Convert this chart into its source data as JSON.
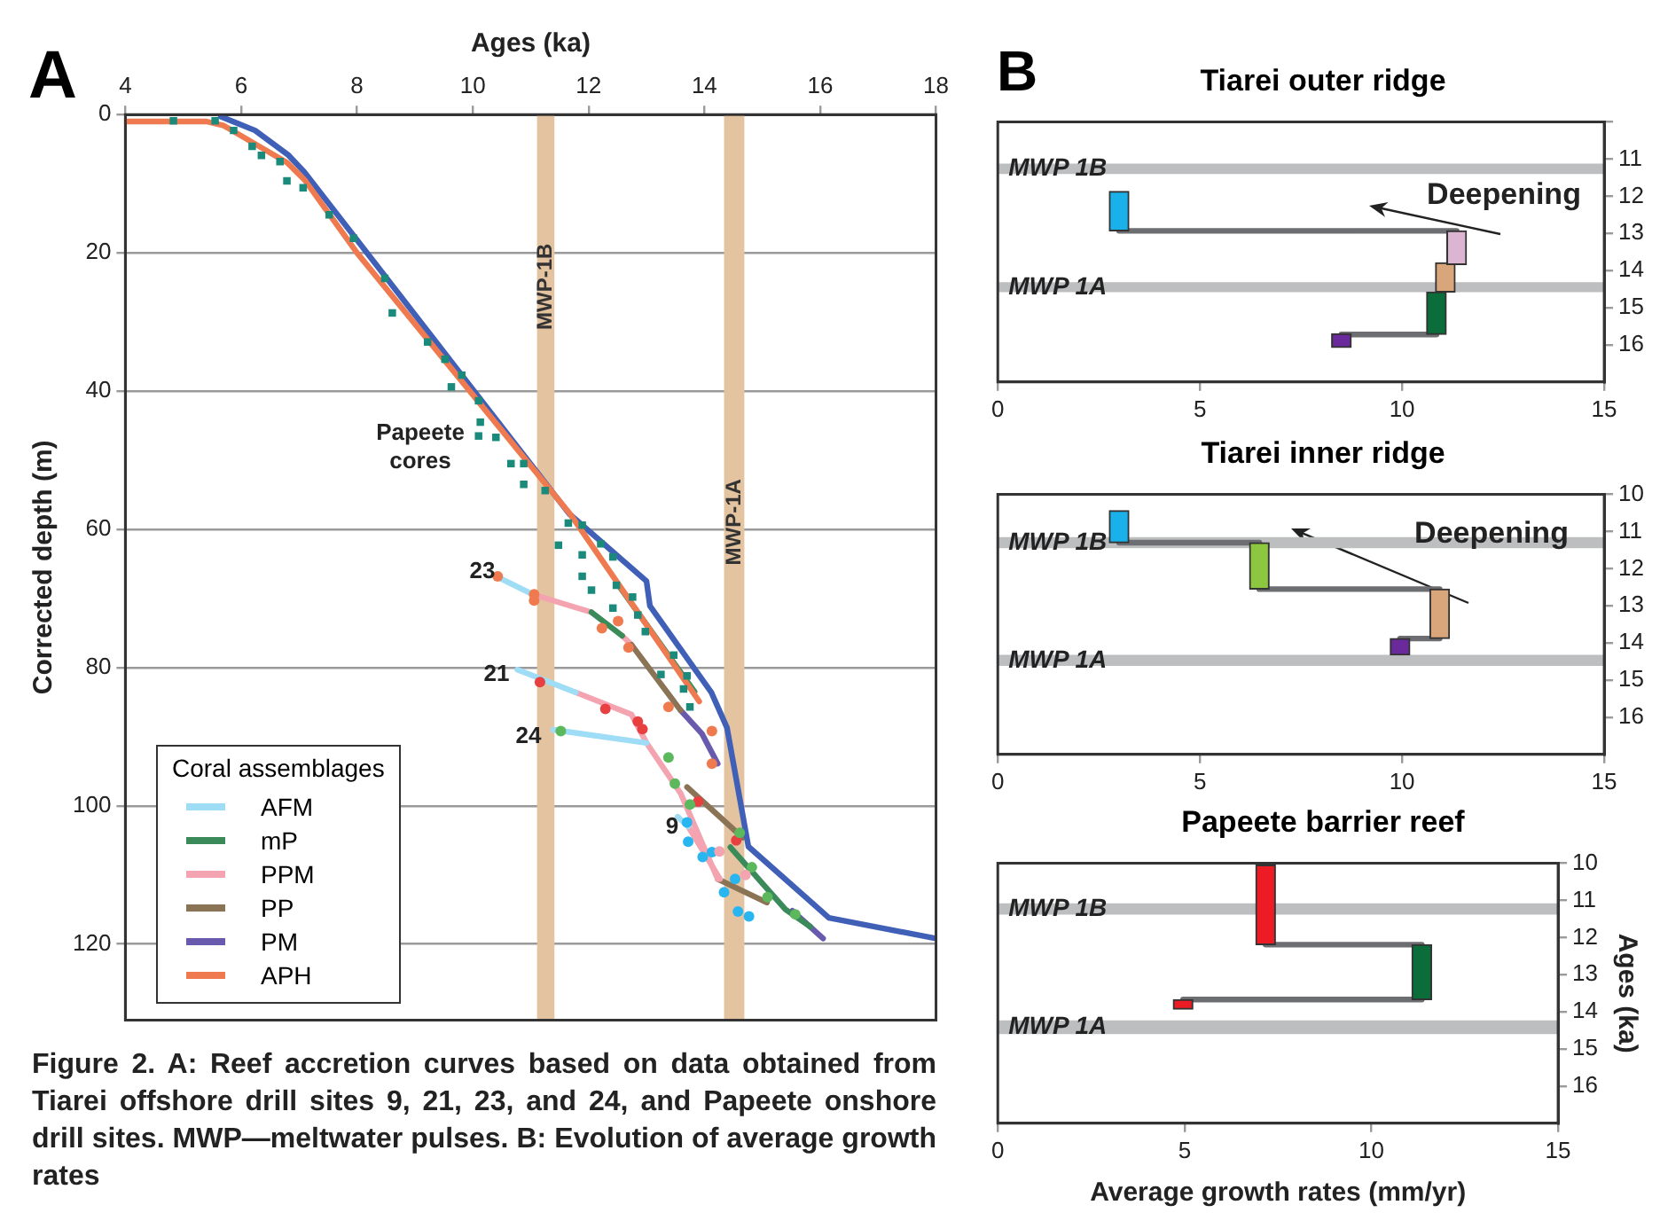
{
  "chart_data": [
    {
      "type": "line",
      "title": "A",
      "xlabel": "Ages (ka)",
      "ylabel": "Corrected depth (m)",
      "legend_title": "Coral assemblages",
      "legend": "bottom left",
      "grid": "y",
      "xlim": [
        4,
        18
      ],
      "xticks": [
        4,
        6,
        8,
        10,
        12,
        14,
        16,
        18
      ],
      "ylim": [
        131,
        0
      ],
      "yticks": [
        0,
        20,
        40,
        60,
        80,
        100,
        120
      ],
      "bands": [
        {
          "axis": "x",
          "from": 11.11,
          "to": 11.41,
          "label": "MWP-1B",
          "color": "#e3c3a0"
        },
        {
          "axis": "x",
          "from": 14.34,
          "to": 14.69,
          "label": "MWP-1A",
          "color": "#e3c3a0"
        }
      ],
      "series": [
        {
          "marker": "none",
          "name": "AFM",
          "color": "#9fdcf5",
          "x": [
            10.4,
            11.03
          ],
          "values": [
            66.8,
            69.4
          ]
        },
        {
          "marker": "none",
          "name": "mP",
          "color": "#3a8a5a",
          "x": [
            12.05,
            12.58
          ],
          "values": [
            72.0,
            75.4
          ]
        },
        {
          "marker": "none",
          "name": "PPM",
          "color": "#f4a3b0",
          "x": [
            11.03,
            12.05
          ],
          "values": [
            69.4,
            72.0
          ]
        },
        {
          "marker": "none",
          "name": "PP",
          "color": "#8b7355",
          "x": [
            12.74,
            13.59
          ],
          "values": [
            76.7,
            86.2
          ]
        },
        {
          "marker": "none",
          "name": "PM",
          "color": "#6a5aad",
          "x": [
            13.59,
            13.96,
            14.23
          ],
          "values": [
            86.2,
            89.6,
            93.9
          ]
        },
        {
          "marker": "none",
          "name": "APH",
          "color": "#f07a50",
          "x": [
            4,
            5.4,
            5.7,
            6.8,
            7.1,
            8,
            11.7,
            12.53,
            13.91
          ],
          "values": [
            1,
            1,
            1.6,
            7,
            9.5,
            20,
            58,
            68.1,
            84.9
          ]
        },
        {
          "marker": "none",
          "color": "#4060b8",
          "x": [
            5.65,
            6.24,
            6.82,
            7.09,
            11.67,
            13.0,
            13.06,
            14.12,
            14.39,
            14.76,
            16.15,
            18.0
          ],
          "values": [
            0.3,
            2.3,
            5.9,
            8.3,
            57.8,
            67.5,
            71.1,
            83.6,
            88.7,
            105.9,
            116.2,
            119.2
          ]
        },
        {
          "marker": "none",
          "color": "#9fdcf5",
          "x": [
            10.77,
            11.78
          ],
          "values": [
            80.3,
            83.6
          ]
        },
        {
          "marker": "none",
          "color": "#9fdcf5",
          "x": [
            11.39,
            13.0
          ],
          "values": [
            89.0,
            90.9
          ]
        },
        {
          "marker": "none",
          "color": "#9fdcf5",
          "x": [
            13.54,
            13.72
          ],
          "values": [
            101.6,
            103.0
          ]
        },
        {
          "marker": "none",
          "color": "#3a8a5a",
          "x": [
            12.55,
            13.83
          ],
          "values": [
            68.5,
            83.5
          ]
        },
        {
          "marker": "none",
          "color": "#3a8a5a",
          "x": [
            14.45,
            15.4,
            15.83
          ],
          "values": [
            106.0,
            115.0,
            117.5
          ]
        },
        {
          "marker": "none",
          "color": "#f4a3b0",
          "x": [
            12.58,
            12.74
          ],
          "values": [
            75.4,
            76.7
          ]
        },
        {
          "marker": "none",
          "color": "#f4a3b0",
          "x": [
            11.78,
            12.74,
            13.0,
            13.59,
            14.23
          ],
          "values": [
            83.6,
            86.8,
            90.9,
            98.2,
            110.6
          ]
        },
        {
          "marker": "none",
          "color": "#f4a3b0",
          "x": [
            13.72,
            14.27
          ],
          "values": [
            103.0,
            110.6
          ]
        },
        {
          "marker": "none",
          "color": "#8b7355",
          "x": [
            13.7,
            14.66
          ],
          "values": [
            97.3,
            104.6
          ]
        },
        {
          "marker": "none",
          "color": "#8b7355",
          "x": [
            14.23,
            15.08
          ],
          "values": [
            110.6,
            114.0
          ]
        },
        {
          "marker": "none",
          "color": "#6a5aad",
          "x": [
            15.52,
            16.05
          ],
          "values": [
            115.2,
            119.2
          ]
        },
        {
          "type": "scatter",
          "marker": "square",
          "color": "#1a8a7a",
          "x": [
            4.83,
            5.55,
            5.87,
            6.19,
            6.35,
            6.67,
            6.79,
            7.07,
            7.52,
            7.94,
            8.48,
            8.61,
            9.22,
            9.52,
            9.63,
            9.81,
            10.1,
            10.13,
            10.1,
            10.4,
            10.66,
            10.88,
            10.88,
            11.25,
            11.65,
            11.89,
            11.48,
            12.21,
            12.42,
            11.89,
            11.89,
            12.05,
            12.48,
            12.42,
            12.76,
            12.85,
            12.98,
            13.47,
            13.25,
            13.7,
            13.64,
            13.75
          ],
          "values": [
            0.9,
            0.9,
            2.3,
            4.6,
            5.9,
            6.8,
            9.6,
            10.6,
            14.5,
            17.9,
            23.7,
            28.7,
            32.9,
            35.4,
            39.4,
            37.7,
            41.4,
            44.5,
            46.5,
            46.7,
            50.5,
            50.5,
            53.5,
            54.4,
            59.1,
            59.4,
            62.3,
            62.1,
            64.0,
            63.7,
            66.8,
            68.8,
            68.1,
            71.4,
            69.8,
            72.4,
            74.8,
            78.2,
            81.0,
            81.2,
            83.1,
            85.7
          ]
        },
        {
          "type": "scatter",
          "marker": "circle",
          "colors": [
            "#f07a50",
            "#f07a50",
            "#f07a50",
            "#f07a50",
            "#f07a50",
            "#f07a50",
            "#f07a50",
            "#f07a50",
            "#f07a50",
            "#e84040",
            "#e84040",
            "#e84040",
            "#e84040",
            "#e84040",
            "#e84040",
            "#5cb85c",
            "#5cb85c",
            "#5cb85c",
            "#5cb85c",
            "#5cb85c",
            "#5cb85c",
            "#5cb85c",
            "#5cb85c",
            "#29b6f0",
            "#29b6f0",
            "#29b6f0",
            "#29b6f0",
            "#29b6f0",
            "#29b6f0",
            "#29b6f0",
            "#29b6f0",
            "#f4a3b0",
            "#f4a3b0"
          ],
          "x": [
            10.43,
            11.06,
            11.06,
            12.23,
            12.51,
            12.69,
            13.38,
            14.13,
            14.13,
            11.16,
            12.29,
            12.85,
            12.93,
            13.89,
            14.55,
            11.52,
            13.38,
            13.49,
            13.75,
            14.61,
            14.82,
            15.09,
            15.57,
            13.7,
            13.72,
            13.97,
            14.13,
            14.34,
            14.53,
            14.58,
            14.77,
            14.26,
            14.71
          ],
          "values": [
            66.8,
            69.4,
            70.3,
            74.3,
            73.3,
            77.1,
            85.7,
            89.2,
            93.9,
            82.1,
            86.0,
            87.8,
            88.9,
            99.4,
            105.0,
            89.2,
            93.0,
            96.8,
            99.8,
            103.9,
            108.9,
            113.2,
            115.7,
            102.4,
            105.2,
            107.4,
            106.7,
            112.5,
            110.6,
            115.3,
            116.0,
            106.6,
            110.0
          ]
        }
      ],
      "annotations": [
        "Figure 2. A: Reef accretion curves based on data obtained from Tiarei offshore drill sites 9, 21, 23, and 24, and Papeete onshore drill sites. MWP—meltwater pulses. B: Evolution of average growth rates",
        "Papeete cores",
        "23",
        "21",
        "24",
        "9"
      ]
    },
    {
      "type": "bar",
      "title": "Tiarei outer ridge",
      "xlim": [
        0,
        15
      ],
      "xticks": [
        0,
        5,
        10,
        15
      ],
      "ylim": [
        17,
        10
      ],
      "yticks": [
        {
          "value": 10,
          "label": null
        },
        11,
        12,
        13,
        14,
        15,
        16
      ],
      "bands": [
        {
          "axis": "y",
          "from": 11.12,
          "to": 11.4,
          "label": "MWP 1B",
          "color": "#bcbec0"
        },
        {
          "axis": "y",
          "from": 14.31,
          "to": 14.58,
          "label": "MWP 1A",
          "color": "#bcbec0"
        }
      ],
      "series": [
        {
          "type": "line",
          "marker": "none",
          "color": "#6d6e71",
          "x": [
            3.0,
            11.35
          ],
          "values": [
            12.93,
            12.93
          ]
        },
        {
          "type": "line",
          "marker": "none",
          "color": "#6d6e71",
          "x": [
            8.5,
            10.85
          ],
          "values": [
            15.72,
            15.72
          ]
        },
        {
          "x": [
            3.0,
            8.5,
            10.85,
            11.07,
            11.35
          ],
          "base": [
            11.87,
            15.7,
            14.58,
            13.79,
            12.93
          ],
          "values": [
            1.06,
            0.37,
            1.14,
            0.79,
            0.91
          ],
          "colors": [
            "#1ab0ea",
            "#6a2a9b",
            "#0b6e3a",
            "#d9a57a",
            "#dcb5d3"
          ]
        }
      ],
      "annotations": [
        "B",
        "Deepening"
      ]
    },
    {
      "type": "bar",
      "title": "Tiarei inner ridge",
      "xlim": [
        0,
        15
      ],
      "xticks": [
        0,
        5,
        10,
        15
      ],
      "ylim": [
        17,
        10
      ],
      "yticks": [
        10,
        11,
        12,
        13,
        14,
        15,
        16
      ],
      "bands": [
        {
          "axis": "y",
          "from": 11.15,
          "to": 11.45,
          "label": "MWP 1B",
          "color": "#bcbec0"
        },
        {
          "axis": "y",
          "from": 14.32,
          "to": 14.62,
          "label": "MWP 1A",
          "color": "#bcbec0"
        }
      ],
      "series": [
        {
          "type": "line",
          "marker": "none",
          "color": "#6d6e71",
          "x": [
            3.0,
            6.47
          ],
          "values": [
            11.3,
            11.3
          ]
        },
        {
          "type": "line",
          "marker": "none",
          "color": "#6d6e71",
          "x": [
            6.47,
            10.93
          ],
          "values": [
            12.55,
            12.55
          ]
        },
        {
          "type": "line",
          "marker": "none",
          "color": "#6d6e71",
          "x": [
            9.95,
            10.93
          ],
          "values": [
            13.88,
            13.88
          ]
        },
        {
          "x": [
            3.0,
            6.47,
            9.95,
            10.93
          ],
          "base": [
            10.44,
            11.3,
            13.88,
            12.55
          ],
          "values": [
            0.86,
            1.25,
            0.44,
            1.33
          ],
          "colors": [
            "#1ab0ea",
            "#8dc63f",
            "#6a2a9b",
            "#d9a57a"
          ]
        }
      ],
      "annotations": [
        "Deepening"
      ]
    },
    {
      "type": "bar",
      "title": "Papeete barrier reef",
      "xlabel": "Average growth rates (mm/yr)",
      "ylabel": "Ages (ka)",
      "xlim": [
        0,
        15
      ],
      "xticks": [
        0,
        5,
        10,
        15
      ],
      "ylim": [
        17,
        10
      ],
      "yticks": [
        10,
        11,
        12,
        13,
        14,
        15,
        16
      ],
      "bands": [
        {
          "axis": "y",
          "from": 11.08,
          "to": 11.38,
          "label": "MWP 1B",
          "color": "#bcbec0"
        },
        {
          "axis": "y",
          "from": 14.23,
          "to": 14.6,
          "label": "MWP 1A",
          "color": "#bcbec0"
        }
      ],
      "series": [
        {
          "type": "line",
          "marker": "none",
          "color": "#6d6e71",
          "x": [
            7.17,
            11.35
          ],
          "values": [
            12.19,
            12.19
          ]
        },
        {
          "type": "line",
          "marker": "none",
          "color": "#6d6e71",
          "x": [
            4.96,
            11.35
          ],
          "values": [
            13.67,
            13.67
          ]
        },
        {
          "x": [
            4.96,
            7.17,
            11.35
          ],
          "base": [
            13.67,
            10.05,
            12.19
          ],
          "values": [
            0.26,
            2.14,
            1.48
          ],
          "colors": [
            "#ed1c24",
            "#ed1c24",
            "#0b6e3a"
          ]
        }
      ]
    }
  ]
}
